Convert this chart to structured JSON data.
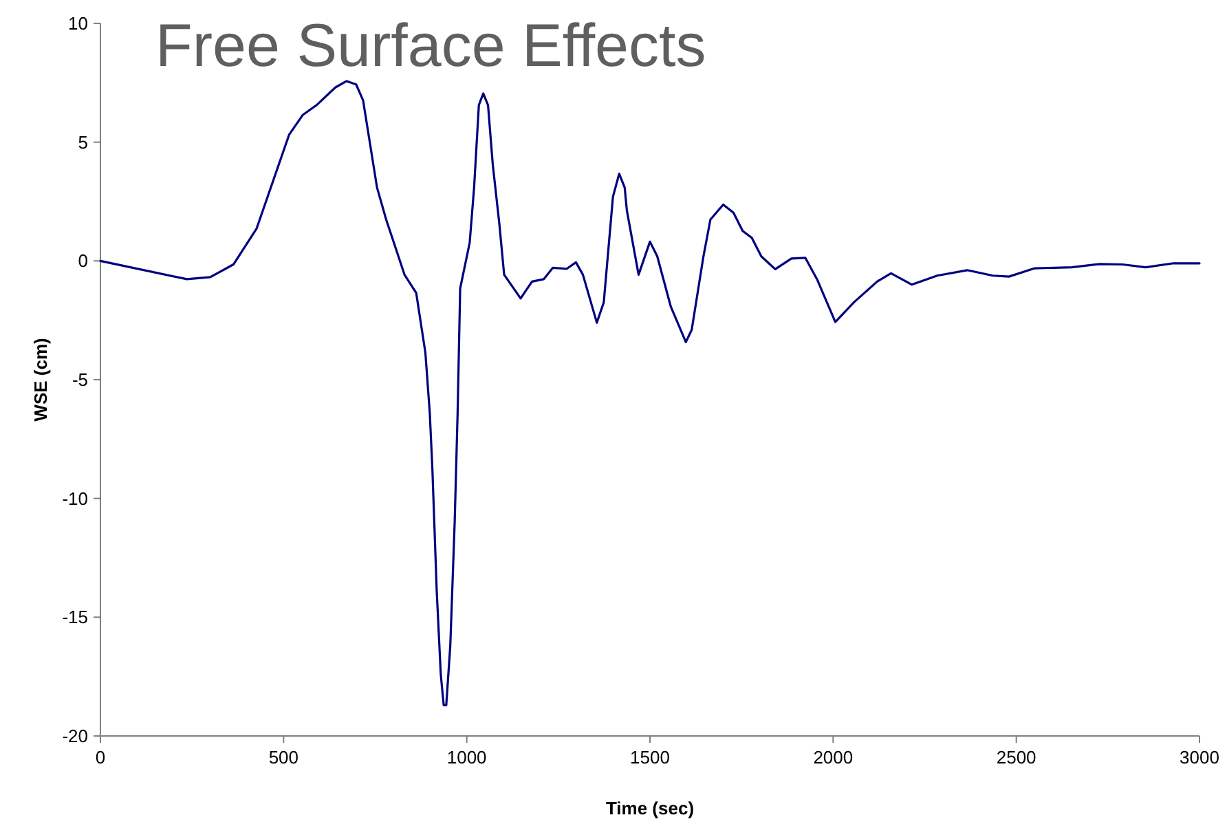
{
  "chart_data": {
    "type": "line",
    "title": "Free Surface Effects",
    "xlabel": "Time (sec)",
    "ylabel": "WSE (cm)",
    "xlim": [
      0,
      3000
    ],
    "xticks": [
      0,
      500,
      1000,
      1500,
      2000,
      2500,
      3000
    ],
    "ylim": [
      -20,
      10
    ],
    "yticks": [
      -20,
      -15,
      -10,
      -5,
      0,
      5,
      10
    ],
    "grid": false,
    "marker": "none",
    "line_style": "solid",
    "series": [
      {
        "color": "#000080",
        "x": [
          0,
          236,
          300,
          363,
          426,
          515,
          552,
          590,
          641,
          672,
          698,
          717,
          755,
          780,
          830,
          862,
          887,
          899,
          906,
          918,
          929,
          937,
          944,
          955,
          967,
          975,
          982,
          1008,
          1020,
          1033,
          1045,
          1058,
          1071,
          1089,
          1102,
          1147,
          1178,
          1210,
          1235,
          1273,
          1298,
          1317,
          1355,
          1374,
          1399,
          1416,
          1431,
          1437,
          1469,
          1500,
          1520,
          1557,
          1598,
          1614,
          1646,
          1665,
          1700,
          1728,
          1753,
          1778,
          1804,
          1842,
          1886,
          1924,
          1956,
          2006,
          2057,
          2120,
          2158,
          2215,
          2284,
          2366,
          2436,
          2480,
          2550,
          2651,
          2727,
          2790,
          2853,
          2929,
          3000
        ],
        "values": [
          0,
          -0.77,
          -0.68,
          -0.15,
          1.35,
          5.31,
          6.14,
          6.56,
          7.3,
          7.57,
          7.43,
          6.76,
          3.09,
          1.74,
          -0.58,
          -1.35,
          -3.86,
          -6.4,
          -8.7,
          -13.9,
          -17.4,
          -18.7,
          -18.7,
          -16.2,
          -11,
          -6.4,
          -1.16,
          0.77,
          3.09,
          6.56,
          7.05,
          6.56,
          4.05,
          1.55,
          -0.58,
          -1.58,
          -0.87,
          -0.77,
          -0.29,
          -0.33,
          -0.06,
          -0.58,
          -2.6,
          -1.74,
          2.7,
          3.67,
          3.09,
          2.12,
          -0.58,
          0.81,
          0.19,
          -1.93,
          -3.42,
          -2.9,
          0.19,
          1.74,
          2.37,
          2.03,
          1.26,
          0.97,
          0.19,
          -0.35,
          0.1,
          0.13,
          -0.77,
          -2.57,
          -1.74,
          -0.87,
          -0.52,
          -1.0,
          -0.62,
          -0.39,
          -0.62,
          -0.66,
          -0.31,
          -0.27,
          -0.13,
          -0.15,
          -0.27,
          -0.1,
          -0.1
        ]
      }
    ]
  }
}
